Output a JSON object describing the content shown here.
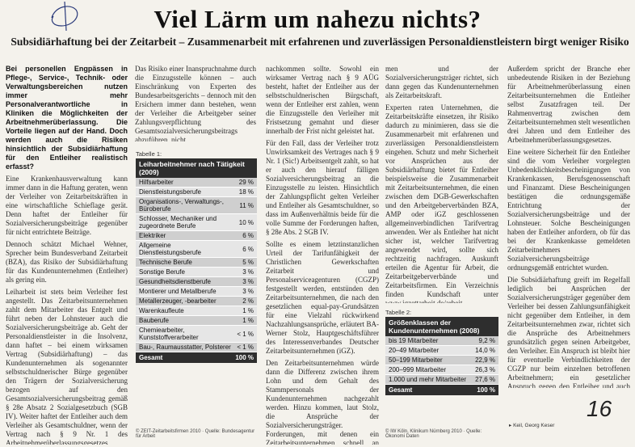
{
  "article": {
    "title": "Viel Lärm um nahezu nichts?",
    "subtitle": "Subsidiärhaftung bei der Zeitarbeit – Zusammenarbeit mit erfahrenen und zuverlässigen Personaldienstleistern birgt weniger Risiko",
    "lead": "Bei personellen Engpässen in Pflege-, Service-, Technik- oder Verwaltungsbereichen nutzen immer mehr Personalverantwortliche in Kliniken die Möglichkeiten der Arbeitnehmerüberlassung. Die Vorteile liegen auf der Hand. Doch werden auch die Risiken hinsichtlich der Subsidiärhaftung für den Entleiher realistisch erfasst?",
    "col1_p1": "Eine Krankenhausverwaltung kann immer dann in die Haftung geraten, wenn der Verleiher von Zeitarbeitskräften in eine wirtschaftliche Schieflage gerät. Denn haftet der Entleiher für Sozialversicherungsbeiträge gegenüber für nicht entrichtete Beiträge.",
    "col1_p2": "Dennoch schätzt Michael Wehner, Sprecher beim Bundesverband Zeitarbeit (BZA), das Risiko der Subsidiärhaftung für das Kundenunternehmen (Entleiher) als gering ein.",
    "col1_p3": "Leiharbeit ist stets beim Verleiher fest angestellt. Das Zeitarbeitsunternehmen zahlt dem Mitarbeiter das Entgelt und führt neben der Lohnsteuer auch die Sozialversicherungsbeiträge ab. Geht der Personaldienstleister in die Insolvenz, dann haftet – bei einem wirksamen Vertrag (Subsidiärhaftung) – das Kundenunternehmen als sogenannter selbstschuldnerischer Bürge gegenüber den Trägern der Sozialversicherung bezogen auf den Gesamtsozialversicherungsbeitrag gemäß § 28e Absatz 2 Sozialgesetzbuch (SGB IV). Weiter haftet der Entleiher auch dem Verleiher als Gesamtschuldner, wenn der Vertrag nach § 9 Nr. 1 des Arbeitnehmerüberlassungsgesetzes (AÜG) unwirksam ist.",
    "col2_p1": "Das Risiko einer Inanspruchnahme durch die Einzugsstelle können – auch Einschränkung von Experten des Bundesarbeitsgerichts – dennoch mit den Ersichern immer dann bestehen, wenn der Verleiher die Arbeitgeber seiner Zahlungsverpflichtung des Gesamtsozialversicherungsbeitrags abzuführen, nicht",
    "col3_p1": "nachkommen sollte. Sowohl ein wirksamer Vertrag nach § 9 AÜG besteht, haftet der Entleiher aus der selbstschuldnerischen Bürgschaft, wenn der Entleiher erst zahlen, wenn die Einzugsstelle den Verleiher mit Fristsetzung gemahnt und dieser innerhalb der Frist nicht geleistet hat.",
    "col3_p2": "Für den Fall, dass der Verleiher trotz Unwirksamkeit des Vertrages nach § 9 Nr. 1 (Sic!) Arbeitsentgelt zahlt, so hat er auch den hierauf fälligen Sozialversicherungsbeitrag an die Einzugsstelle zu leisten. Hinsichtlich der Zahlungspflicht gelten Verleiher und Entleiher als Gesamtschuldner, so dass im Außenverhältnis beide für die volle Summe der Forderungen haften, § 28e Abs. 2 SGB IV.",
    "col3_p3": "Sollte es einem letztinstanzlichen Urteil der Tarifunfähigkeit der Christlichen Gewerkschaften Zeitarbeit und Personalserviceagenturen (CGZP) festgestellt werden, entstünden den Zeitarbeitsunternehmen, die nach den gesetzlichen equal-pay-Grundsätzen für eine Vielzahl rückwirkend Nachzahlungsansprüche, erläutert BA-Werner Stolz, Hauptgeschäftsführer des Interessenverbandes Deutscher Zeitarbeitsunternehmen (iGZ).",
    "col3_p4": "Den Zeitarbeitsunternehmen würde dann die Differenz zwischen ihrem Lohn und dem Gehalt des Stammpersonals der Kundenunternehmen nachgezahlt werden. Hinzu kommen, laut Stolz, die Ansprüche der Sozialversicherungsträger. Forderungen, mit denen ein Zeitarbeitsunternehmen schnell an seine finanziellen Grenzen stoßen könnte.",
    "col4_p1": "men und der Sozialversicherungsträger richtet, sich dann gegen das Kundenunternehmen als Zeitarbeitskraft.",
    "col4_p2": "Experten raten Unternehmen, die Zeitarbeitskräfte einsetzen, ihr Risiko dadurch zu minimieren, dass sie die Zusammenarbeit mit erfahrenen und zuverlässigen Personaldienstleistern eingehen. Schutz und mehr Sicherheit vor Ansprüchen aus der Subsidiärhaftung bietet für Entleiher beispielsweise die Zusammenarbeit mit Zeitarbeitsunternehmen, die einen zwischen dem DGB-Gewerkschaften und den Arbeitgeberverbänden BZA, AMP oder iGZ geschlossenen allgemeinverbindlichen Tarifvertrag anwenden. Wer als Entleiher hat nicht sicher ist, welcher Tarifvertrag angewendet wird, sollte sich rechtzeitig nachfragen. Auskunft erteilen die Agentur für Arbeit, die Zeitarbeitgeberverbände und Zeitarbeitsfirmen. Ein Verzeichnis finden Kundschaft unter www.igzettarbeit.de/arbeit-ausmitgliedsfirmen.",
    "col5_p1": "Außerdem spricht der Branche eher unbedeutende Risiken in der Beziehung für Arbeitnehmerüberlassung einen Zeitarbeitsunternehmen die Entleiher selbst Zusatzfragen teil. Der Rahmenvertrag zwischen dem Zeitarbeitsunternehmen stelt wesentlichen drei Jahren und dem Entleiher des Arbeitnehmerüberlassungsgesetzes.",
    "col5_p2": "Eine weitere Sicherheit für den Entleiher sind die vom Verleiher vorgelegten Unbedenklichkeitsbescheinigungen von Krankenkassen, Berufsgenossenschaft und Finanzamt. Diese Bescheinigungen bestätigen die ordnungsgemäße Entrichtung der Sozialversicherungsbeiträge und der Lohnsteuer. Solche Bescheinigungen haben der Entleiher anfordern, ob für das bei der Krankenkasse gemeldeten Zeitarbeitnehmers Sozialversicherungsbeiträge ordnungsgemäß entrichtet wurden.",
    "col5_p3": "Die Subsidiärhaftung greift im Regelfall lediglich bei Ansprüchen der Sozialversicherungsträger gegenüber dem Verleiher bei dessen Zahlungsunfähigkeit nicht gegenüber dem Entleiher, in dem Zeitarbeitsunternehmen zwar, richtet sich die Ansprüche des Arbeitnehmers grundsätzlich gegen seinen Arbeitgeber, den Verleiher. Ein Anspruch ist bleibt hier für eventuelle Verbindlichkeiten der CGZP nur beim einzelnen betroffenen Arbeitnehmern; ein gesetzlicher Anspruch gegen den Entleiher und auch nur, wenn der Zeitarbeitsunternehmen insolvent und damit zahlungsunfähig wäre."
  },
  "table1": {
    "caption": "Tabelle 1:",
    "heading": "Leiharbeitnehmer nach Tätigkeit (2009)",
    "rows": [
      {
        "label": "Hilfsarbeiter",
        "value": "29 %"
      },
      {
        "label": "Dienstleistungsberufe",
        "value": "18 %"
      },
      {
        "label": "Organisations-, Verwaltungs-, Büroberufe",
        "value": "11 %"
      },
      {
        "label": "Schlosser, Mechaniker und zugeordnete Berufe",
        "value": "10 %"
      },
      {
        "label": "Elektriker",
        "value": "6 %"
      },
      {
        "label": "Allgemeine Dienstleistungsberufe",
        "value": "6 %"
      },
      {
        "label": "Technische Berufe",
        "value": "5 %"
      },
      {
        "label": "Sonstige Berufe",
        "value": "3 %"
      },
      {
        "label": "Gesundheitsdienstberufe",
        "value": "3 %"
      },
      {
        "label": "Montierer und Metallberufe",
        "value": "3 %"
      },
      {
        "label": "Metallerzeuger, -bearbeiter",
        "value": "2 %"
      },
      {
        "label": "Warenkaufleute",
        "value": "1 %"
      },
      {
        "label": "Bauberufe",
        "value": "1 %"
      },
      {
        "label": "Chemiearbeiter, Kunststoffverarbeiter",
        "value": "< 1 %"
      },
      {
        "label": "Bau-, Raumausstatter, Polsterer",
        "value": "< 1 %"
      }
    ],
    "total_label": "Gesamt",
    "total_value": "100 %",
    "source": "© ZEIT-Zeitarbeitsfirmen 2010 · Quelle: Bundesagentur für Arbeit"
  },
  "table2": {
    "caption": "Tabelle 2:",
    "heading": "Größenklassen der Kundenunternehmen (2008)",
    "rows": [
      {
        "label": "bis 19 Mitarbeiter",
        "value": "9,2 %"
      },
      {
        "label": "20–49 Mitarbeiter",
        "value": "14,0 %"
      },
      {
        "label": "50–199 Mitarbeiter",
        "value": "22,9 %"
      },
      {
        "label": "200–999 Mitarbeiter",
        "value": "26,3 %"
      },
      {
        "label": "1.000 und mehr Mitarbeiter",
        "value": "27,6 %"
      }
    ],
    "total_label": "Gesamt",
    "total_value": "100 %",
    "source": "© IW Köln, Klinikum Nürnberg 2010 · Quelle: Ökonomi Daten"
  },
  "footer": {
    "author": "▸ Keil, Georg Keser",
    "page_number": "16"
  }
}
